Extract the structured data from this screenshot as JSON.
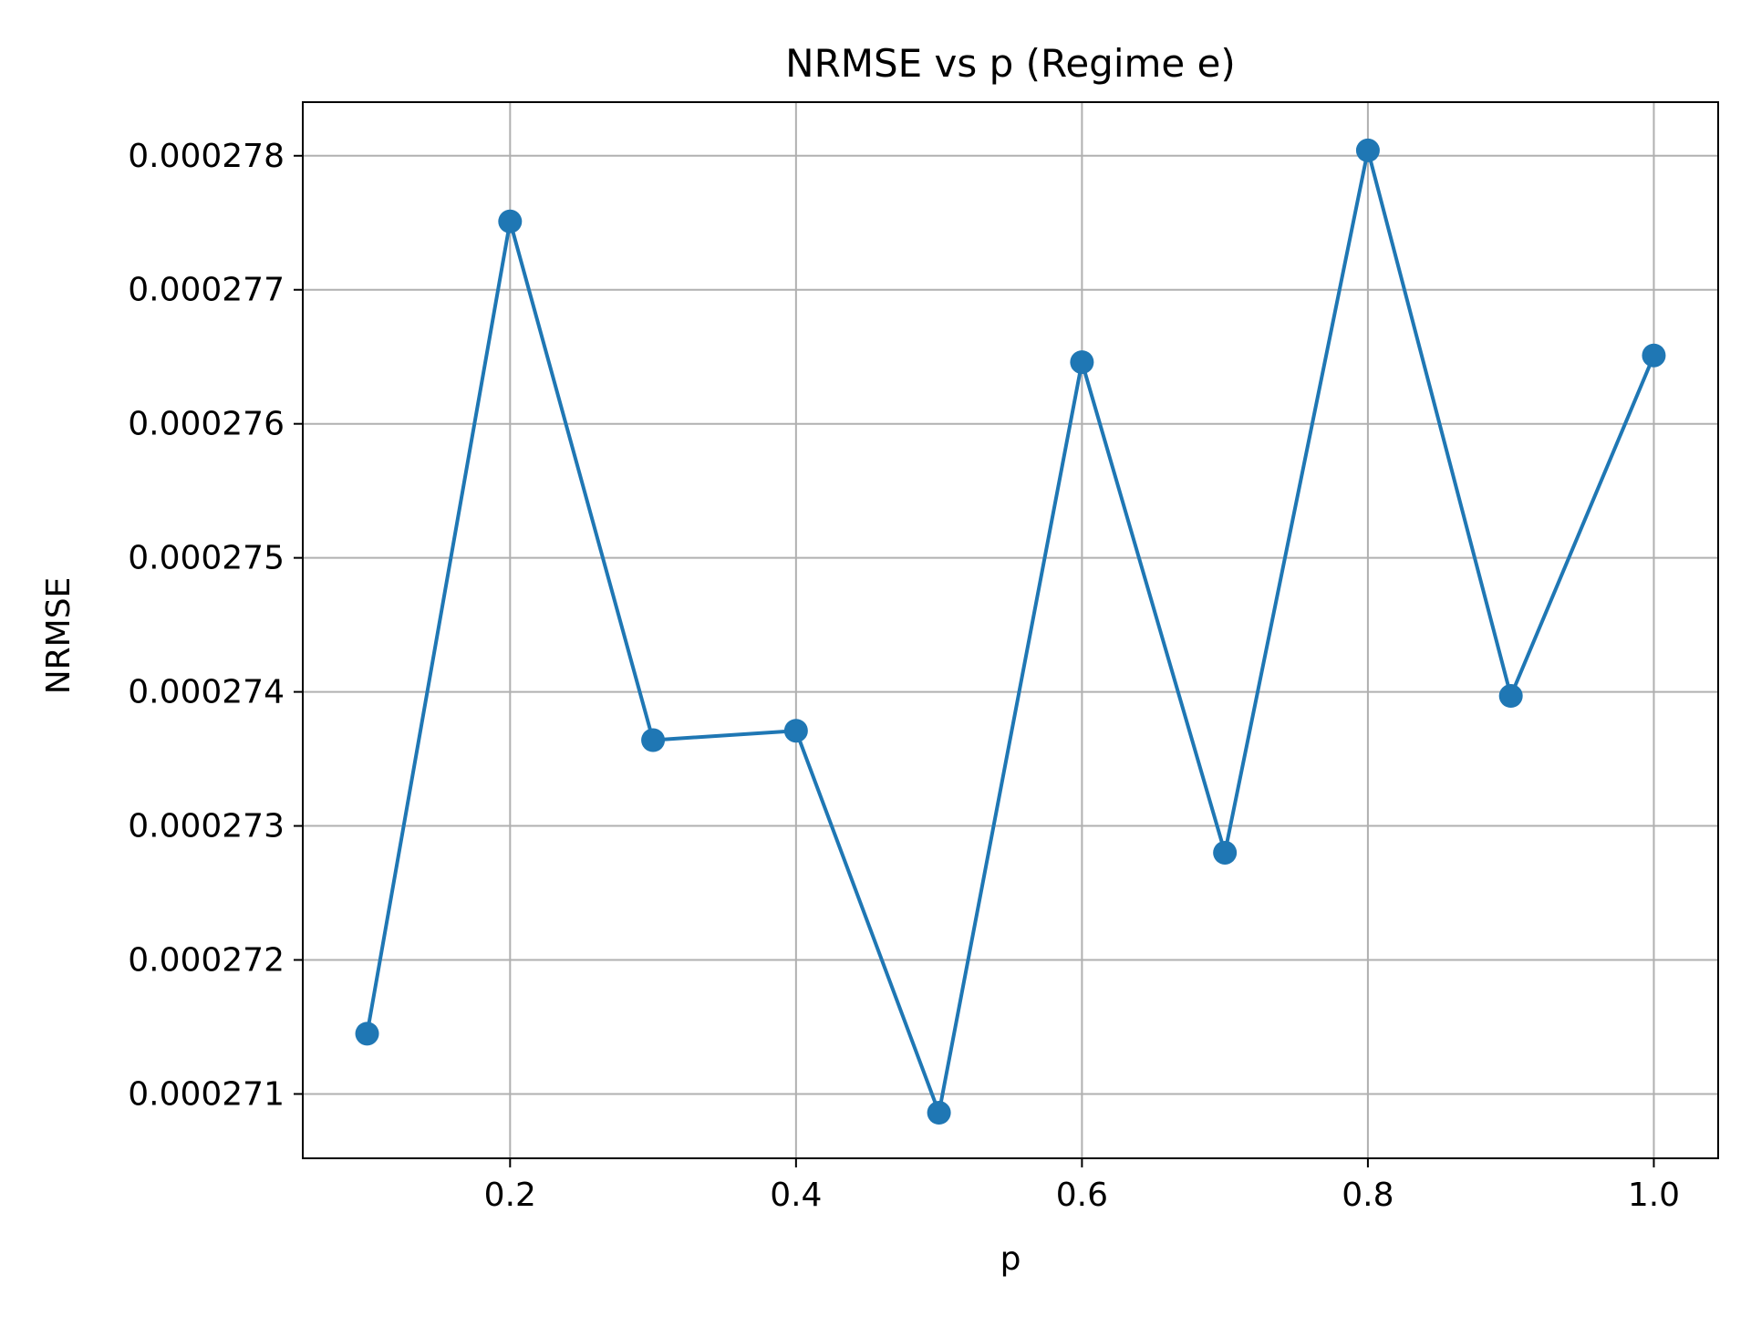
{
  "chart_data": {
    "type": "line",
    "title": "NRMSE vs p (Regime e)",
    "xlabel": "p",
    "ylabel": "NRMSE",
    "x_ticks": [
      "0.2",
      "0.4",
      "0.6",
      "0.8",
      "1.0"
    ],
    "x_tick_values": [
      0.2,
      0.4,
      0.6,
      0.8,
      1.0
    ],
    "y_ticks": [
      "0.000271",
      "0.000272",
      "0.000273",
      "0.000274",
      "0.000275",
      "0.000276",
      "0.000277",
      "0.000278"
    ],
    "y_tick_values": [
      0.000271,
      0.000272,
      0.000273,
      0.000274,
      0.000275,
      0.000276,
      0.000277,
      0.000278
    ],
    "xlim": [
      0.055,
      1.045
    ],
    "ylim": [
      0.00027052,
      0.0002784
    ],
    "grid": true,
    "series": [
      {
        "color": "#1f77b4",
        "marker": "circle",
        "x": [
          0.1,
          0.2,
          0.3,
          0.4,
          0.5,
          0.6,
          0.7,
          0.8,
          0.9,
          1.0
        ],
        "y": [
          0.00027145,
          0.00027751,
          0.00027364,
          0.00027371,
          0.00027086,
          0.00027646,
          0.0002728,
          0.00027804,
          0.00027397,
          0.00027651
        ]
      }
    ]
  }
}
